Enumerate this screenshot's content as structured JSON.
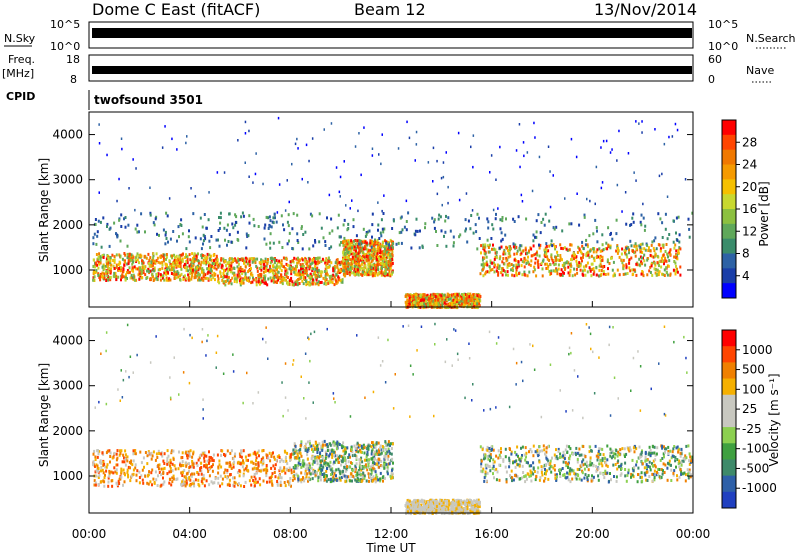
{
  "header": {
    "title": "Dome C East (fitACF)",
    "beam": "Beam 12",
    "date": "13/Nov/2014"
  },
  "top_panels": {
    "nsky_label": "N.Sky",
    "nsky_ticks": [
      "10^5",
      "10^0"
    ],
    "nsearch_label": "N.Search",
    "nsearch_ticks": [
      "10^5",
      "10^0"
    ],
    "freq_label": "Freq.",
    "freq_unit": "[MHz]",
    "freq_ticks": [
      "18",
      "8"
    ],
    "nave_label": "Nave",
    "nave_ticks": [
      "60",
      "0"
    ],
    "cpid_label": "CPID",
    "cpid_value": "twofsound 3501"
  },
  "chart_data": [
    {
      "type": "heatmap",
      "name": "power",
      "ylabel": "Slant Range [km]",
      "yticks": [
        "4000",
        "3000",
        "2000",
        "1000"
      ],
      "ylim": [
        180,
        4500
      ],
      "xlim": [
        0,
        24
      ],
      "colorbar_label": "Power [dB]",
      "colorbar_ticks": [
        "28",
        "24",
        "20",
        "16",
        "12",
        "8",
        "4"
      ],
      "colors": [
        "#0000ff",
        "#1a3ea8",
        "#2d62a5",
        "#3a8c6b",
        "#5fa85a",
        "#8cc040",
        "#c8d830",
        "#f5c000",
        "#f59a00",
        "#f07800",
        "#ff4500",
        "#ff0000"
      ],
      "scatter_regions": [
        {
          "t0": 0,
          "t1": 5,
          "r0": 800,
          "r1": 1400,
          "level": "high"
        },
        {
          "t0": 5,
          "t1": 10,
          "r0": 700,
          "r1": 1300,
          "level": "high"
        },
        {
          "t0": 10,
          "t1": 12,
          "r0": 900,
          "r1": 1700,
          "level": "high"
        },
        {
          "t0": 12.5,
          "t1": 15.5,
          "r0": 200,
          "r1": 500,
          "level": "high"
        },
        {
          "t0": 15.5,
          "t1": 23.5,
          "r0": 900,
          "r1": 1600,
          "level": "high"
        },
        {
          "t0": 0,
          "t1": 24,
          "r0": 1500,
          "r1": 2300,
          "level": "low"
        }
      ]
    },
    {
      "type": "heatmap",
      "name": "velocity",
      "ylabel": "Slant Range [km]",
      "yticks": [
        "4000",
        "3000",
        "2000",
        "1000"
      ],
      "ylim": [
        180,
        4500
      ],
      "xlim": [
        0,
        24
      ],
      "xticks": [
        "00:00",
        "04:00",
        "08:00",
        "12:00",
        "16:00",
        "20:00",
        "00:00"
      ],
      "xlabel": "Time UT",
      "colorbar_label": "Velocity [m s⁻¹]",
      "colorbar_ticks": [
        "1000",
        "500",
        "100",
        "25",
        "-25",
        "-100",
        "-500",
        "-1000"
      ],
      "colors": [
        "#2040c0",
        "#2e60a8",
        "#3e8a6a",
        "#3fa040",
        "#8cd050",
        "#c8c8c0",
        "#c8c8c0",
        "#f5b000",
        "#f08000",
        "#ff4500",
        "#ff0000"
      ],
      "scatter_regions": [
        {
          "t0": 0,
          "t1": 8,
          "r0": 800,
          "r1": 1600,
          "level": "neg"
        },
        {
          "t0": 8,
          "t1": 12,
          "r0": 900,
          "r1": 1800,
          "level": "mixed"
        },
        {
          "t0": 12.5,
          "t1": 15.5,
          "r0": 200,
          "r1": 500,
          "level": "slow"
        },
        {
          "t0": 15.5,
          "t1": 24,
          "r0": 900,
          "r1": 1700,
          "level": "mixed"
        }
      ]
    }
  ]
}
